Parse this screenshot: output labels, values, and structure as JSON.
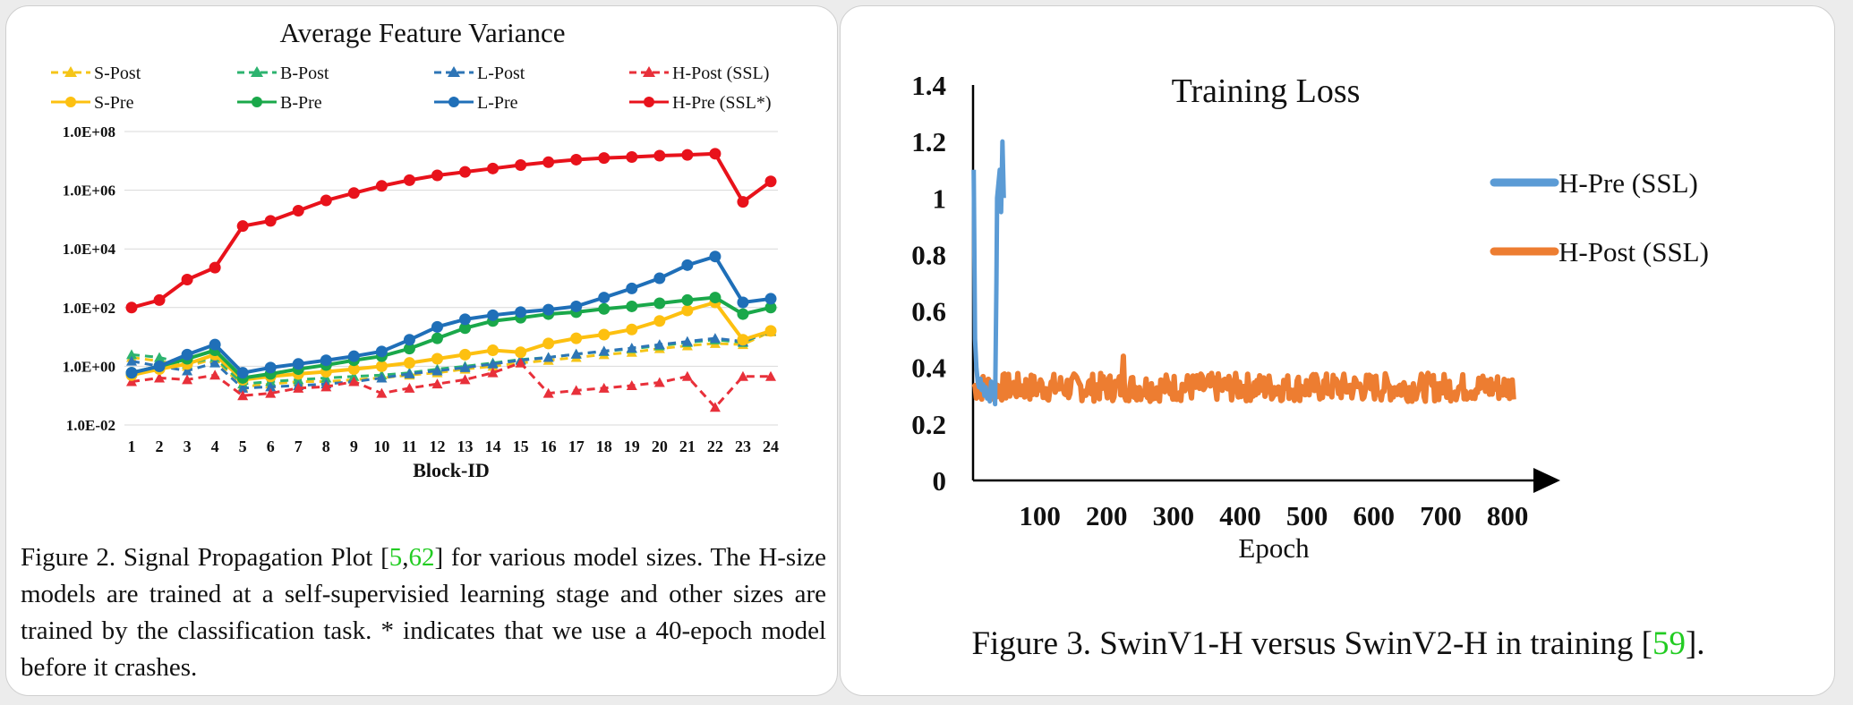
{
  "chart_data": [
    {
      "type": "line",
      "title": "Average Feature Variance",
      "xlabel": "Block-ID",
      "ylabel": "",
      "yscale": "log",
      "ylim": [
        0.01,
        100000000
      ],
      "yticks": [
        "1.0E-02",
        "1.0E+00",
        "1.0E+02",
        "1.0E+04",
        "1.0E+06",
        "1.0E+08"
      ],
      "x": [
        1,
        2,
        3,
        4,
        5,
        6,
        7,
        8,
        9,
        10,
        11,
        12,
        13,
        14,
        15,
        16,
        17,
        18,
        19,
        20,
        21,
        22,
        23,
        24
      ],
      "grid": true,
      "legend_position": "top",
      "series": [
        {
          "name": "S-Post",
          "color": "#f5c518",
          "dashed": true,
          "marker": "triangle",
          "values": [
            2.0,
            1.5,
            1.0,
            1.8,
            0.2,
            0.25,
            0.3,
            0.3,
            0.35,
            0.4,
            0.5,
            0.6,
            0.8,
            1.0,
            1.3,
            1.6,
            2.0,
            2.5,
            3.0,
            4.0,
            5.0,
            6.0,
            5.5,
            15
          ]
        },
        {
          "name": "B-Post",
          "color": "#2db36f",
          "dashed": true,
          "marker": "triangle",
          "values": [
            2.5,
            2.0,
            1.2,
            2.0,
            0.25,
            0.3,
            0.35,
            0.4,
            0.45,
            0.5,
            0.6,
            0.8,
            1.0,
            1.3,
            1.7,
            2.0,
            2.6,
            3.2,
            4.0,
            5.0,
            6.5,
            8.0,
            6.5,
            16
          ]
        },
        {
          "name": "L-Post",
          "color": "#2e75b6",
          "dashed": true,
          "marker": "triangle",
          "values": [
            1.5,
            1.0,
            0.7,
            1.3,
            0.18,
            0.2,
            0.22,
            0.25,
            0.3,
            0.4,
            0.55,
            0.7,
            0.9,
            1.2,
            1.6,
            2.0,
            2.6,
            3.3,
            4.2,
            5.5,
            7.0,
            9.0,
            7.0,
            16
          ]
        },
        {
          "name": "H-Post (SSL)",
          "color": "#e8303a",
          "dashed": true,
          "marker": "triangle",
          "values": [
            0.3,
            0.4,
            0.35,
            0.5,
            0.1,
            0.12,
            0.18,
            0.2,
            0.3,
            0.12,
            0.18,
            0.25,
            0.35,
            0.6,
            1.3,
            0.12,
            0.15,
            0.18,
            0.22,
            0.28,
            0.45,
            0.04,
            0.45,
            0.45
          ]
        },
        {
          "name": "S-Pre",
          "color": "#fdc010",
          "dashed": false,
          "marker": "circle",
          "values": [
            0.5,
            0.8,
            1.2,
            2.5,
            0.35,
            0.45,
            0.55,
            0.65,
            0.8,
            1.0,
            1.3,
            1.8,
            2.5,
            3.5,
            3.0,
            6.0,
            9.0,
            12,
            18,
            35,
            80,
            150,
            8,
            16
          ]
        },
        {
          "name": "B-Pre",
          "color": "#1aa84a",
          "dashed": false,
          "marker": "circle",
          "values": [
            0.6,
            1.0,
            1.8,
            3.5,
            0.4,
            0.55,
            0.8,
            1.1,
            1.6,
            2.2,
            4.0,
            9.0,
            20,
            35,
            45,
            60,
            70,
            90,
            110,
            140,
            180,
            220,
            60,
            100
          ]
        },
        {
          "name": "L-Pre",
          "color": "#1f6fb8",
          "dashed": false,
          "marker": "circle",
          "values": [
            0.6,
            1.0,
            2.5,
            5.5,
            0.6,
            0.9,
            1.2,
            1.6,
            2.2,
            3.2,
            8.0,
            22,
            40,
            55,
            70,
            85,
            110,
            220,
            450,
            1000,
            2800,
            5500,
            150,
            200
          ]
        },
        {
          "name": "H-Pre (SSL*)",
          "color": "#e8121b",
          "dashed": false,
          "marker": "circle",
          "values": [
            100,
            180,
            900,
            2300,
            60000,
            90000,
            200000,
            450000,
            800000,
            1400000,
            2200000,
            3200000,
            4200000,
            5500000,
            7200000,
            9000000,
            11000000,
            12500000,
            13500000,
            15000000,
            16000000,
            17500000,
            400000,
            2000000
          ]
        }
      ]
    },
    {
      "type": "line",
      "title": "Training Loss",
      "xlabel": "Epoch",
      "ylabel": "",
      "xlim": [
        0,
        820
      ],
      "ylim": [
        0,
        1.4
      ],
      "xticks": [
        "100",
        "200",
        "300",
        "400",
        "500",
        "600",
        "700",
        "800"
      ],
      "yticks": [
        "0",
        "0.2",
        "0.4",
        "0.6",
        "0.8",
        "1",
        "1.2",
        "1.4"
      ],
      "grid": false,
      "legend_position": "right",
      "series": [
        {
          "name": "H-Pre (SSL)",
          "color": "#5b9bd5",
          "x": [
            1,
            3,
            5,
            7,
            9,
            11,
            13,
            15,
            17,
            19,
            21,
            23,
            25,
            27,
            29,
            31,
            33,
            35,
            36,
            38,
            40,
            42,
            44,
            46
          ],
          "values": [
            1.1,
            0.5,
            0.4,
            0.35,
            0.33,
            0.36,
            0.32,
            0.34,
            0.3,
            0.33,
            0.29,
            0.31,
            0.28,
            0.35,
            0.3,
            0.33,
            0.27,
            0.7,
            1.0,
            1.05,
            1.1,
            0.95,
            1.2,
            1.0
          ]
        },
        {
          "name": "H-Post (SSL)",
          "color": "#ed7d31",
          "x_range": [
            1,
            810
          ],
          "baseline": 0.33,
          "noise": 0.05,
          "spikes": [
            [
              2,
              1.1
            ],
            [
              4,
              0.55
            ],
            [
              6,
              0.42
            ],
            [
              225,
              0.44
            ],
            [
              590,
              0.5
            ]
          ]
        }
      ]
    }
  ],
  "captions": {
    "left": {
      "prefix": "Figure 2. Signal Propagation Plot [",
      "cite1": "5",
      "sep": ",",
      "cite2": "62",
      "suffix": "] for various model sizes. The H-size models are trained at a self-supervisied learning stage and other sizes are trained by the classification task.  * indicates that we use a 40-epoch model before it crashes."
    },
    "right": {
      "prefix": "Figure 3. SwinV1-H versus SwinV2-H in training [",
      "cite": "59",
      "suffix": "]."
    }
  }
}
